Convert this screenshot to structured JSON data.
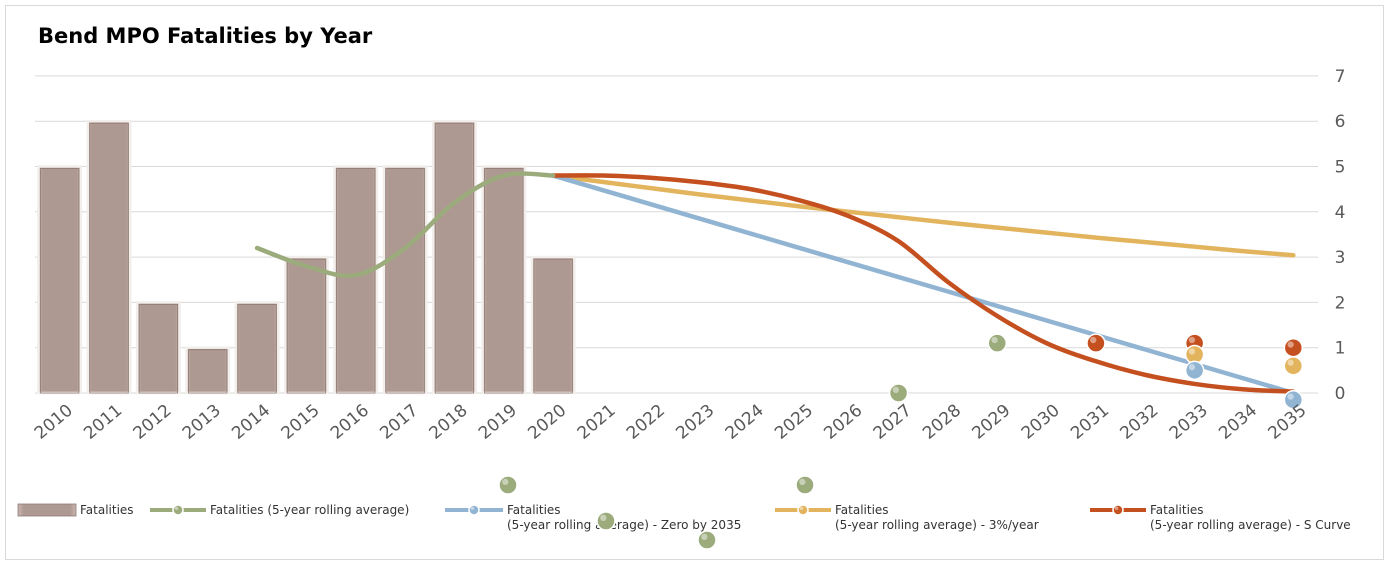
{
  "chart_data": {
    "type": "bar",
    "title": "Bend MPO Fatalities by Year",
    "xlabel": "",
    "ylabel": "",
    "ylim": [
      0,
      7
    ],
    "yticks": [
      0,
      1,
      2,
      3,
      4,
      5,
      6,
      7
    ],
    "y_axis_position": "right",
    "grid": true,
    "legend_position": "bottom",
    "categories": [
      "2010",
      "2011",
      "2012",
      "2013",
      "2014",
      "2015",
      "2016",
      "2017",
      "2018",
      "2019",
      "2020",
      "2021",
      "2022",
      "2023",
      "2024",
      "2025",
      "2026",
      "2027",
      "2028",
      "2029",
      "2030",
      "2031",
      "2032",
      "2033",
      "2034",
      "2035"
    ],
    "series": [
      {
        "name": "Fatalities",
        "kind": "bar",
        "color": "#b39e98",
        "values": [
          5,
          6,
          2,
          1,
          2,
          3,
          5,
          5,
          6,
          5,
          3,
          null,
          null,
          null,
          null,
          null,
          null,
          null,
          null,
          null,
          null,
          null,
          null,
          null,
          null,
          null
        ]
      },
      {
        "name": "Fatalities (5-year rolling average)",
        "kind": "line",
        "color": "#9bab7c",
        "values": [
          null,
          null,
          null,
          null,
          3.2,
          2.8,
          2.6,
          3.2,
          4.2,
          4.8,
          4.8,
          null,
          null,
          null,
          null,
          null,
          null,
          null,
          null,
          null,
          null,
          null,
          null,
          null,
          null,
          null
        ]
      },
      {
        "name": "Fatalities\n(5-year rolling average) - Zero by 2035",
        "kind": "line",
        "color": "#91b4d3",
        "values": [
          null,
          null,
          null,
          null,
          null,
          null,
          null,
          null,
          null,
          null,
          4.8,
          4.48,
          4.16,
          3.84,
          3.52,
          3.2,
          2.88,
          2.56,
          2.24,
          1.92,
          1.6,
          1.28,
          0.96,
          0.64,
          0.32,
          0
        ]
      },
      {
        "name": "Fatalities\n(5-year rolling average) - 3%/year",
        "kind": "line",
        "color": "#e3b45e",
        "values": [
          null,
          null,
          null,
          null,
          null,
          null,
          null,
          null,
          null,
          null,
          4.8,
          4.66,
          4.52,
          4.38,
          4.25,
          4.12,
          4.0,
          3.88,
          3.76,
          3.65,
          3.54,
          3.43,
          3.33,
          3.23,
          3.13,
          3.04
        ]
      },
      {
        "name": "Fatalities\n(5-year rolling average) - S Curve",
        "kind": "line",
        "color": "#c5501f",
        "values": [
          null,
          null,
          null,
          null,
          null,
          null,
          null,
          null,
          null,
          null,
          4.8,
          4.8,
          4.75,
          4.65,
          4.5,
          4.25,
          3.9,
          3.35,
          2.45,
          1.7,
          1.1,
          0.7,
          0.4,
          0.2,
          0.08,
          0.03
        ]
      }
    ],
    "points": [
      {
        "color": "#9bab7c",
        "x": "2027",
        "y": 0
      },
      {
        "color": "#9bab7c",
        "x": "2029",
        "y": 1.1
      },
      {
        "color": "#c5501f",
        "x": "2031",
        "y": 1.1
      },
      {
        "color": "#c5501f",
        "x": "2033",
        "y": 1.1
      },
      {
        "color": "#e3b45e",
        "x": "2033",
        "y": 0.85
      },
      {
        "color": "#91b4d3",
        "x": "2033",
        "y": 0.5
      },
      {
        "color": "#c5501f",
        "x": "2035",
        "y": 1.0
      },
      {
        "color": "#e3b45e",
        "x": "2035",
        "y": 0.6
      },
      {
        "color": "#91b4d3",
        "x": "2035",
        "y": -0.15
      }
    ]
  }
}
